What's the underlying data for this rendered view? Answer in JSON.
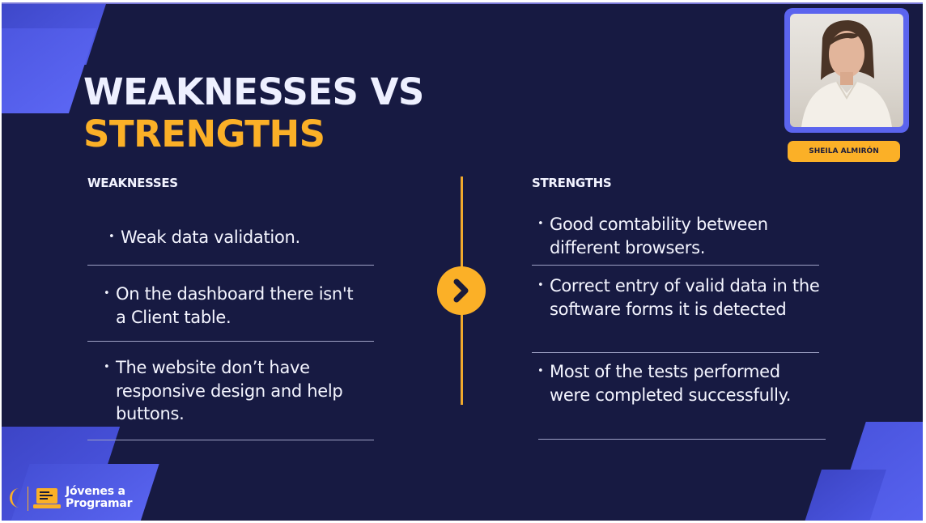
{
  "title": {
    "line1": "WEAKNESSES VS",
    "line2": "STRENGTHS"
  },
  "presenter": {
    "name": "SHEILA ALMIRÓN"
  },
  "weaknesses": {
    "heading": "WEAKNESSES",
    "items": [
      "Weak data validation.",
      "On the dashboard there isn't a Client table.",
      "The website don’t have responsive design and help buttons."
    ]
  },
  "strengths": {
    "heading": "STRENGTHS",
    "items": [
      "Good comtability between different browsers.",
      "Correct entry of valid data in the software forms it is detected",
      "Most of the tests performed were completed successfully."
    ]
  },
  "logo": {
    "line1": "Jóvenes a",
    "line2": "Programar"
  },
  "colors": {
    "background": "#171a42",
    "accent": "#fbb027",
    "title_white": "#eef0ff",
    "decor_blue": "#4f5ae6"
  },
  "icons": {
    "next": "chevron-right-icon",
    "logo_moon": "moon-icon",
    "logo_laptop": "laptop-icon"
  }
}
